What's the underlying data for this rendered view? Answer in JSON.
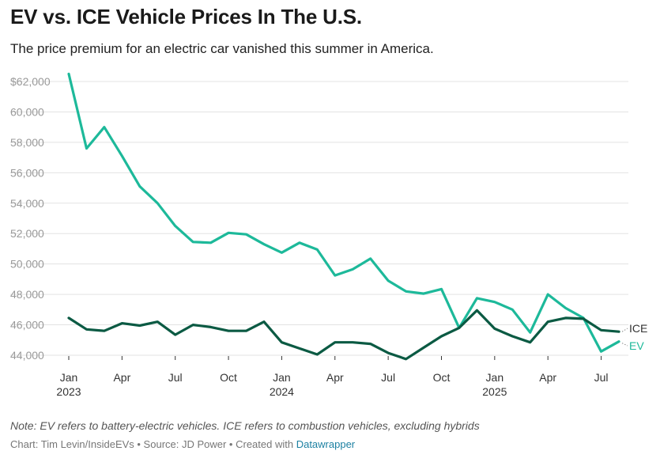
{
  "header": {
    "title": "EV vs. ICE Vehicle Prices In The U.S.",
    "subtitle": "The price premium for an electric car vanished this summer in America."
  },
  "footer": {
    "note": "Note: EV refers to battery-electric vehicles. ICE refers to combustion vehicles, excluding hybrids",
    "credit_prefix": "Chart: Tim Levin/InsideEVs • Source: JD Power • Created with ",
    "credit_link": "Datawrapper"
  },
  "colors": {
    "ev": "#1db99a",
    "ice": "#0b5a43",
    "grid": "#e3e3e3",
    "tick_text": "#999999",
    "axis_text": "#333333"
  },
  "chart_data": {
    "type": "line",
    "title": "EV vs. ICE Vehicle Prices In The U.S.",
    "xlabel": "",
    "ylabel": "",
    "ylim": [
      44000,
      62000
    ],
    "y_ticks": [
      44000,
      46000,
      48000,
      50000,
      52000,
      54000,
      56000,
      58000,
      60000,
      62000
    ],
    "y_tick_labels": [
      "44,000",
      "46,000",
      "48,000",
      "50,000",
      "52,000",
      "54,000",
      "56,000",
      "58,000",
      "60,000",
      "$62,000"
    ],
    "x_index_range": [
      0,
      31
    ],
    "x_ticks": [
      {
        "index": 0,
        "label": "Jan",
        "year": "2023"
      },
      {
        "index": 3,
        "label": "Apr",
        "year": ""
      },
      {
        "index": 6,
        "label": "Jul",
        "year": ""
      },
      {
        "index": 9,
        "label": "Oct",
        "year": ""
      },
      {
        "index": 12,
        "label": "Jan",
        "year": "2024"
      },
      {
        "index": 15,
        "label": "Apr",
        "year": ""
      },
      {
        "index": 18,
        "label": "Jul",
        "year": ""
      },
      {
        "index": 21,
        "label": "Oct",
        "year": ""
      },
      {
        "index": 24,
        "label": "Jan",
        "year": "2025"
      },
      {
        "index": 27,
        "label": "Apr",
        "year": ""
      },
      {
        "index": 30,
        "label": "Jul",
        "year": ""
      }
    ],
    "series": [
      {
        "name": "EV",
        "color": "#1db99a",
        "values": [
          62500,
          57600,
          59000,
          57100,
          55100,
          54000,
          52500,
          51450,
          51400,
          52050,
          51950,
          51300,
          50750,
          51400,
          50950,
          49250,
          49650,
          50350,
          48900,
          48200,
          48050,
          48350,
          45800,
          47750,
          47500,
          47000,
          45500,
          48000,
          47100,
          46450,
          44250,
          44900
        ]
      },
      {
        "name": "ICE",
        "color": "#0b5a43",
        "values": [
          46450,
          45700,
          45600,
          46100,
          45950,
          46200,
          45350,
          46000,
          45850,
          45600,
          45600,
          46200,
          44850,
          44450,
          44050,
          44850,
          44850,
          44750,
          44150,
          43750,
          44500,
          45250,
          45800,
          46950,
          45750,
          45250,
          44850,
          46200,
          46450,
          46400,
          45650,
          45550
        ]
      }
    ]
  }
}
